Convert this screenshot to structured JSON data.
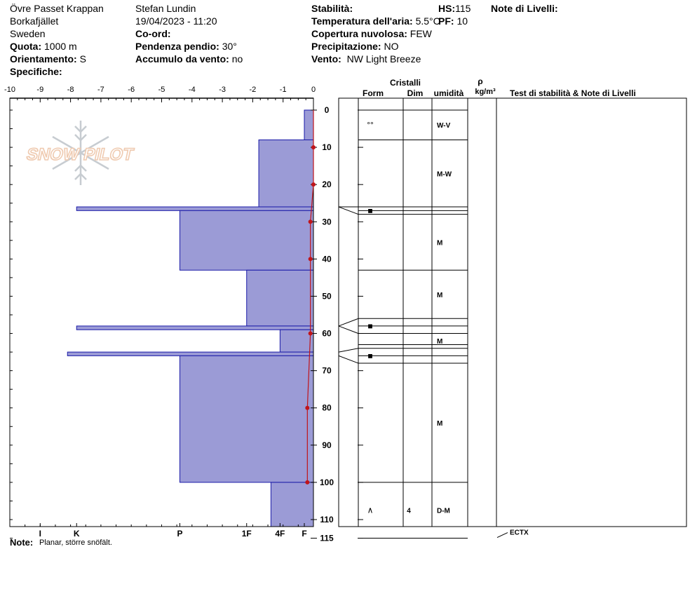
{
  "header": {
    "location": "Övre Passet Krappan",
    "region": "Borkafjället",
    "country": "Sweden",
    "quota_label": "Quota:",
    "quota_value": "1000 m",
    "orient_label": "Orientamento:",
    "orient_value": "S",
    "specifiche_label": "Specifiche:",
    "observer": "Stefan Lundin",
    "datetime": "19/04/2023 - 11:20",
    "coord_label": "Co-ord:",
    "slope_label": "Pendenza pendio:",
    "slope_value": "30°",
    "wind_load_label": "Accumulo da vento:",
    "wind_load_value": "no",
    "stability_label": "Stabilità:",
    "air_temp_label": "Temperatura dell'aria:",
    "air_temp_value": "5.5°C",
    "cloud_label": "Copertura nuvolosa:",
    "cloud_value": "FEW",
    "precip_label": "Precipitazione:",
    "precip_value": "NO",
    "wind_label": "Vento:",
    "wind_value": "NW Light Breeze",
    "hs_label": "HS:",
    "hs_value": "115",
    "pf_label": "PF:",
    "pf_value": "10",
    "layer_notes_label": "Note di Livelli:"
  },
  "watermark": {
    "text": "SNOW PILOT"
  },
  "columns": {
    "cristalli": "Cristalli",
    "form": "Form",
    "dim": "Dim",
    "umidita": "umidità",
    "rho": "ρ",
    "density_unit": "kg/m³",
    "stability_notes": "Test di stabilità & Note di Livelli"
  },
  "note": {
    "label": "Note:",
    "text": "Planar, större snöfält."
  },
  "chart_data": {
    "type": "snow_profile",
    "depth_axis": {
      "min": 0,
      "max": 115,
      "ticks": [
        0,
        10,
        20,
        30,
        40,
        50,
        60,
        70,
        80,
        90,
        100,
        110,
        115
      ]
    },
    "temp_axis": {
      "min": -10,
      "max": 0,
      "ticks": [
        "-10",
        "-9",
        "-8",
        "-7",
        "-6",
        "-5",
        "-4",
        "-3",
        "-2",
        "-1",
        "0"
      ]
    },
    "hardness_labels": [
      {
        "label": "I",
        "value": -9.0
      },
      {
        "label": "K",
        "value": -7.8
      },
      {
        "label": "P",
        "value": -4.4
      },
      {
        "label": "1F",
        "value": -2.2
      },
      {
        "label": "4F",
        "value": -1.1
      },
      {
        "label": "F",
        "value": -0.3
      }
    ],
    "hardness_layers": [
      {
        "top": 0,
        "bottom": 8,
        "hardness": -0.3
      },
      {
        "top": 8,
        "bottom": 26,
        "hardness": -1.8
      },
      {
        "top": 26,
        "bottom": 27,
        "hardness": -7.8
      },
      {
        "top": 27,
        "bottom": 43,
        "hardness": -4.4
      },
      {
        "top": 43,
        "bottom": 58,
        "hardness": -2.2
      },
      {
        "top": 58,
        "bottom": 59,
        "hardness": -7.8
      },
      {
        "top": 59,
        "bottom": 65,
        "hardness": -1.1
      },
      {
        "top": 65,
        "bottom": 66,
        "hardness": -8.1
      },
      {
        "top": 66,
        "bottom": 100,
        "hardness": -4.4
      },
      {
        "top": 100,
        "bottom": 115,
        "hardness": -1.4
      }
    ],
    "temperature_profile": [
      {
        "depth": 10,
        "temp": 0.0
      },
      {
        "depth": 20,
        "temp": 0.0
      },
      {
        "depth": 30,
        "temp": -0.1
      },
      {
        "depth": 40,
        "temp": -0.1
      },
      {
        "depth": 60,
        "temp": -0.1
      },
      {
        "depth": 80,
        "temp": -0.2
      },
      {
        "depth": 100,
        "temp": -0.2
      }
    ],
    "layer_boundaries": [
      0,
      8,
      26,
      27,
      28,
      43,
      56,
      58,
      60,
      63,
      64,
      66,
      68,
      100,
      115
    ],
    "layers": [
      {
        "top": 0,
        "bottom": 8,
        "form": "°°",
        "dim": "",
        "wet": "W-V"
      },
      {
        "top": 8,
        "bottom": 26,
        "form": "",
        "dim": "",
        "wet": "M-W"
      },
      {
        "top": 26,
        "bottom": 28,
        "form": "■",
        "dim": "",
        "wet": ""
      },
      {
        "top": 28,
        "bottom": 43,
        "form": "",
        "dim": "",
        "wet": "M"
      },
      {
        "top": 43,
        "bottom": 56,
        "form": "",
        "dim": "",
        "wet": "M"
      },
      {
        "top": 56,
        "bottom": 60,
        "form": "■",
        "dim": "",
        "wet": ""
      },
      {
        "top": 60,
        "bottom": 64,
        "form": "",
        "dim": "",
        "wet": "M"
      },
      {
        "top": 64,
        "bottom": 68,
        "form": "■",
        "dim": "",
        "wet": ""
      },
      {
        "top": 68,
        "bottom": 100,
        "form": "",
        "dim": "",
        "wet": "M"
      },
      {
        "top": 100,
        "bottom": 115,
        "form": "∧",
        "dim": "4",
        "wet": "D-M"
      }
    ],
    "stability_tests": [
      {
        "depth": 115,
        "label": "ECTX"
      }
    ],
    "colors": {
      "fill": "#9b9bd6",
      "stroke": "#1a1aa8",
      "temp": "#c0141a"
    }
  }
}
